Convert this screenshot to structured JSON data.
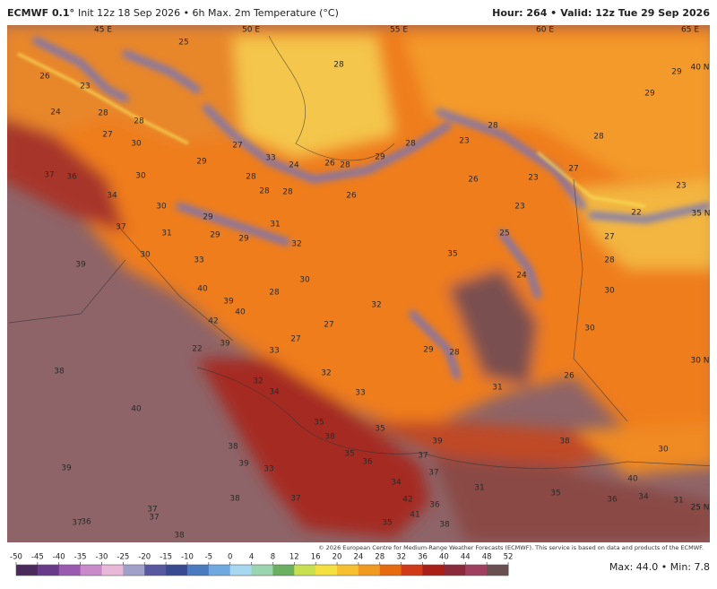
{
  "header": {
    "model": "ECMWF 0.1°",
    "title": "Init 12z 18 Sep 2026 • 6h Max. 2m Temperature (°C)",
    "hour": "Hour: 264 •",
    "valid": "Valid: 12z Tue 29 Sep 2026"
  },
  "coordinates": [
    "45 E",
    "50 E",
    "55 E",
    "60 E",
    "65 E",
    "40 N",
    "35 N",
    "30 N",
    "25 N"
  ],
  "temperature_labels": [
    26,
    24,
    23,
    28,
    27,
    28,
    30,
    25,
    28,
    29,
    29,
    28,
    28,
    23,
    28,
    27,
    29,
    33,
    24,
    26,
    28,
    29,
    27,
    23,
    36,
    37,
    30,
    28,
    28,
    28,
    26,
    23,
    26,
    34,
    30,
    29,
    31,
    23,
    22,
    37,
    31,
    29,
    29,
    32,
    25,
    27,
    35,
    28,
    39,
    30,
    33,
    24,
    30,
    30,
    40,
    28,
    32,
    39,
    40,
    42,
    27,
    30,
    29,
    28,
    39,
    22,
    27,
    33,
    38,
    32,
    26,
    32,
    34,
    33,
    31,
    40,
    35,
    35,
    38,
    39,
    38,
    38,
    35,
    36,
    37,
    30,
    39,
    33,
    37,
    40,
    39,
    34,
    31,
    35,
    42,
    37,
    38,
    36,
    36,
    34,
    31,
    37,
    37,
    37,
    36,
    41,
    35,
    38,
    38
  ],
  "colorbar": {
    "ticks": [
      -50,
      -45,
      -40,
      -35,
      -30,
      -25,
      -20,
      -15,
      -10,
      -5,
      0,
      4,
      8,
      12,
      16,
      20,
      24,
      28,
      32,
      36,
      40,
      44,
      48,
      52
    ],
    "colors": [
      "#4a2a5a",
      "#6a3a8a",
      "#9a5ab0",
      "#c88ac8",
      "#e8b8d8",
      "#a0a0c8",
      "#5858a0",
      "#3a4a90",
      "#4a7ac0",
      "#70a8e0",
      "#a8d8f0",
      "#9ad4b0",
      "#6ab060",
      "#c8e050",
      "#f4e040",
      "#f6c030",
      "#f19a20",
      "#e66a10",
      "#d03a18",
      "#a82018",
      "#8a2a3a",
      "#a04060",
      "#6a5050"
    ]
  },
  "footer": {
    "copyright": "© 2026 European Centre for Medium-Range Weather Forecasts (ECMWF). This service is based on data and products of the ECMWF.",
    "maxmin": "Max: 44.0 • Min: 7.8"
  }
}
